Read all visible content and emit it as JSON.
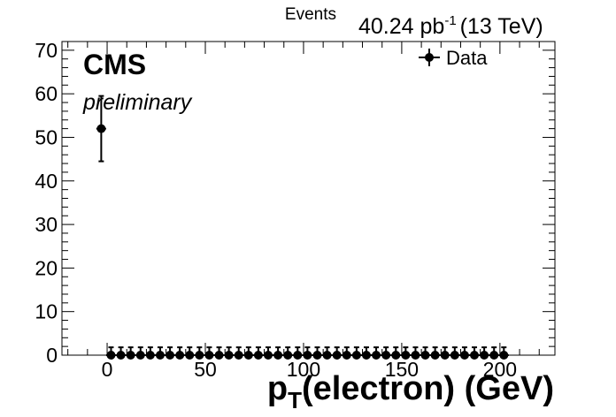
{
  "header": {
    "ylabel": "Events",
    "lumi": "40.24 pb",
    "lumi_exp": "-1",
    "energy": "(13 TeV)"
  },
  "labels": {
    "experiment": "CMS",
    "status": "preliminary",
    "legend": "Data"
  },
  "axes": {
    "xlabel_main": "p",
    "xlabel_sub": "T",
    "xlabel_rest": "(electron) (GeV)"
  },
  "chart_data": {
    "type": "scatter",
    "xlim": [
      -23,
      228
    ],
    "ylim": [
      0,
      72
    ],
    "x_ticks": [
      0,
      50,
      100,
      150,
      200
    ],
    "y_ticks": [
      0,
      10,
      20,
      30,
      40,
      50,
      60,
      70
    ],
    "ylabel": "Events",
    "xlabel": "p_T(electron) (GeV)",
    "legend_position": "top-right",
    "series": [
      {
        "name": "Data",
        "x": [
          -3,
          2,
          7,
          12,
          17,
          22,
          27,
          32,
          37,
          42,
          47,
          52,
          57,
          62,
          67,
          72,
          77,
          82,
          87,
          92,
          97,
          102,
          107,
          112,
          117,
          122,
          127,
          132,
          137,
          142,
          147,
          152,
          157,
          162,
          167,
          172,
          177,
          182,
          187,
          192,
          197,
          202
        ],
        "y": [
          52,
          0,
          0,
          0,
          0,
          0,
          0,
          0,
          0,
          0,
          0,
          0,
          0,
          0,
          0,
          0,
          0,
          0,
          0,
          0,
          0,
          0,
          0,
          0,
          0,
          0,
          0,
          0,
          0,
          0,
          0,
          0,
          0,
          0,
          0,
          0,
          0,
          0,
          0,
          0,
          0,
          0
        ],
        "yerr": [
          7.5,
          1.8,
          1.8,
          1.8,
          1.8,
          1.8,
          1.8,
          1.8,
          1.8,
          1.8,
          1.8,
          1.8,
          1.8,
          1.8,
          1.8,
          1.8,
          1.8,
          1.8,
          1.8,
          1.8,
          1.8,
          1.8,
          1.8,
          1.8,
          1.8,
          1.8,
          1.8,
          1.8,
          1.8,
          1.8,
          1.8,
          1.8,
          1.8,
          1.8,
          1.8,
          1.8,
          1.8,
          1.8,
          1.8,
          1.8,
          1.8,
          1.8
        ],
        "xerr": 2.5,
        "color": "#000000"
      }
    ]
  }
}
